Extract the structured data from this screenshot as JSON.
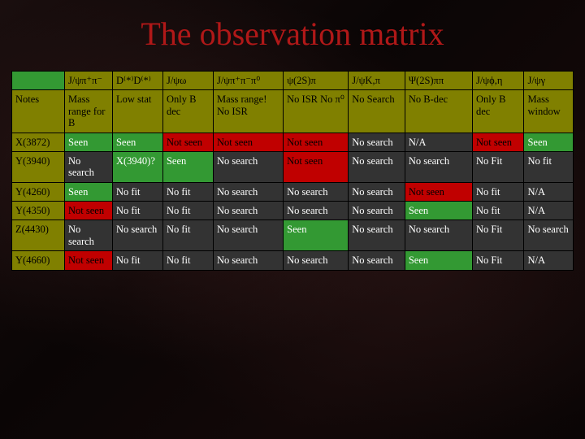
{
  "title": "The observation matrix",
  "title_color": "#b01818",
  "title_fontsize": 40,
  "background_color": "#0a0505",
  "font_family": "Georgia, serif",
  "cell_fontsize": 12.5,
  "colors": {
    "green": "#339933",
    "olive": "#808000",
    "red": "#c00000",
    "dark": "#333333",
    "black": "#000000",
    "text_green": "#ffffff",
    "text_olive": "#000000",
    "text_red": "#000000",
    "text_dark": "#ffffff"
  },
  "column_widths_pct": [
    8.6,
    7.8,
    8.2,
    8.2,
    11.4,
    10.6,
    9.2,
    11.0,
    8.4,
    8.0
  ],
  "headers": [
    "",
    "J/ψπ⁺π⁻",
    "D⁽*⁾D⁽*⁾",
    "J/ψω",
    "J/ψπ⁺π⁻π⁰",
    "ψ(2S)π",
    "J/ψK,π",
    "Ψ(2S)ππ",
    "J/ψϕ,η",
    "J/ψγ"
  ],
  "rows": [
    {
      "label": "Notes",
      "cells": [
        {
          "t": "Mass range for B",
          "c": "olive"
        },
        {
          "t": "Low stat",
          "c": "olive"
        },
        {
          "t": "Only B dec",
          "c": "olive"
        },
        {
          "t": "Mass range! No ISR",
          "c": "olive"
        },
        {
          "t": "No ISR\nNo π⁰",
          "c": "olive"
        },
        {
          "t": "No Search",
          "c": "olive"
        },
        {
          "t": "No B-dec",
          "c": "olive"
        },
        {
          "t": "Only B dec",
          "c": "olive"
        },
        {
          "t": "Mass window",
          "c": "olive"
        }
      ]
    },
    {
      "label": "X(3872)",
      "cells": [
        {
          "t": "Seen",
          "c": "green"
        },
        {
          "t": "Seen",
          "c": "green"
        },
        {
          "t": "Not seen",
          "c": "red"
        },
        {
          "t": "Not seen",
          "c": "red"
        },
        {
          "t": "Not seen",
          "c": "red"
        },
        {
          "t": "No search",
          "c": "dark"
        },
        {
          "t": "N/A",
          "c": "dark"
        },
        {
          "t": "Not seen",
          "c": "red"
        },
        {
          "t": "Seen",
          "c": "green"
        }
      ]
    },
    {
      "label": "Y(3940)",
      "cells": [
        {
          "t": "No search",
          "c": "dark"
        },
        {
          "t": "X(3940)?",
          "c": "green"
        },
        {
          "t": "Seen",
          "c": "green"
        },
        {
          "t": "No search",
          "c": "dark"
        },
        {
          "t": "Not seen",
          "c": "red"
        },
        {
          "t": "No search",
          "c": "dark"
        },
        {
          "t": "No search",
          "c": "dark"
        },
        {
          "t": "No Fit",
          "c": "dark"
        },
        {
          "t": "No fit",
          "c": "dark"
        }
      ]
    },
    {
      "label": "Y(4260)",
      "cells": [
        {
          "t": "Seen",
          "c": "green"
        },
        {
          "t": "No fit",
          "c": "dark"
        },
        {
          "t": "No fit",
          "c": "dark"
        },
        {
          "t": "No search",
          "c": "dark"
        },
        {
          "t": "No search",
          "c": "dark"
        },
        {
          "t": "No search",
          "c": "dark"
        },
        {
          "t": "Not seen",
          "c": "red"
        },
        {
          "t": "No fit",
          "c": "dark"
        },
        {
          "t": "N/A",
          "c": "dark"
        }
      ]
    },
    {
      "label": "Y(4350)",
      "cells": [
        {
          "t": "Not seen",
          "c": "red"
        },
        {
          "t": "No fit",
          "c": "dark"
        },
        {
          "t": "No fit",
          "c": "dark"
        },
        {
          "t": "No search",
          "c": "dark"
        },
        {
          "t": "No search",
          "c": "dark"
        },
        {
          "t": "No search",
          "c": "dark"
        },
        {
          "t": "Seen",
          "c": "green"
        },
        {
          "t": "No fit",
          "c": "dark"
        },
        {
          "t": "N/A",
          "c": "dark"
        }
      ]
    },
    {
      "label": "Z(4430)",
      "cells": [
        {
          "t": "No search",
          "c": "dark"
        },
        {
          "t": "No search",
          "c": "dark"
        },
        {
          "t": "No fit",
          "c": "dark"
        },
        {
          "t": "No search",
          "c": "dark"
        },
        {
          "t": "Seen",
          "c": "green"
        },
        {
          "t": "No search",
          "c": "dark"
        },
        {
          "t": "No search",
          "c": "dark"
        },
        {
          "t": "No Fit",
          "c": "dark"
        },
        {
          "t": "No search",
          "c": "dark"
        }
      ]
    },
    {
      "label": "Y(4660)",
      "cells": [
        {
          "t": "Not seen",
          "c": "red"
        },
        {
          "t": "No fit",
          "c": "dark"
        },
        {
          "t": "No fit",
          "c": "dark"
        },
        {
          "t": "No search",
          "c": "dark"
        },
        {
          "t": "No search",
          "c": "dark"
        },
        {
          "t": "No search",
          "c": "dark"
        },
        {
          "t": "Seen",
          "c": "green"
        },
        {
          "t": "No Fit",
          "c": "dark"
        },
        {
          "t": "N/A",
          "c": "dark"
        }
      ]
    }
  ]
}
